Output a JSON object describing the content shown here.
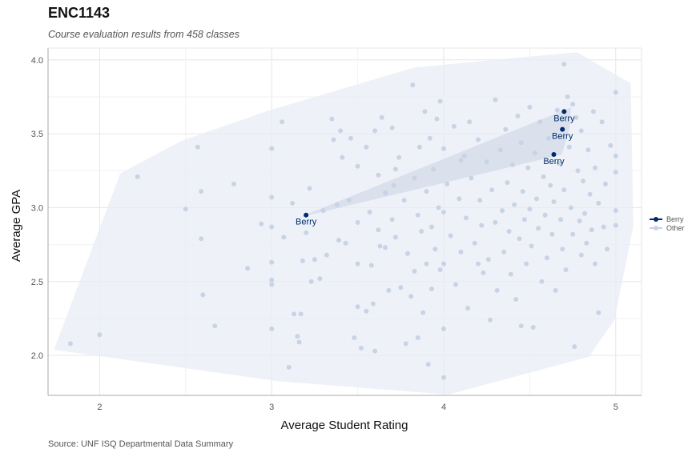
{
  "header": {
    "title": "ENC1143",
    "subtitle": "Course evaluation results from 458 classes",
    "caption": "Source: UNF ISQ Departmental Data Summary"
  },
  "colors": {
    "highlight": "#002c6e",
    "other": "#c8d3e6",
    "hull": "#e8edf5",
    "grid": "#e6e6e6"
  },
  "chart_data": {
    "type": "scatter",
    "xlabel": "Average Student Rating",
    "ylabel": "Average GPA",
    "xlim": [
      1.7,
      5.15
    ],
    "ylim": [
      1.73,
      4.08
    ],
    "x_ticks": [
      2,
      3,
      4,
      5
    ],
    "x_tick_labels": [
      "2",
      "3",
      "4",
      "5"
    ],
    "y_ticks": [
      2.0,
      2.5,
      3.0,
      3.5,
      4.0
    ],
    "y_tick_labels": [
      "2.0",
      "2.5",
      "3.0",
      "3.5",
      "4.0"
    ],
    "grid": true,
    "legend": {
      "placement": "right",
      "entries": [
        {
          "label": "Berry",
          "key": "highlight"
        },
        {
          "label": "Other",
          "key": "other"
        }
      ]
    },
    "series": [
      {
        "name": "Berry",
        "points": [
          {
            "x": 3.2,
            "y": 2.95,
            "label": "Berry"
          },
          {
            "x": 4.64,
            "y": 3.36,
            "label": "Berry"
          },
          {
            "x": 4.69,
            "y": 3.53,
            "label": "Berry"
          },
          {
            "x": 4.7,
            "y": 3.65,
            "label": "Berry"
          }
        ]
      },
      {
        "name": "Other",
        "points": [
          [
            1.83,
            2.08
          ],
          [
            2.0,
            2.14
          ],
          [
            2.22,
            3.21
          ],
          [
            2.5,
            2.99
          ],
          [
            2.57,
            3.41
          ],
          [
            2.59,
            3.11
          ],
          [
            2.59,
            2.79
          ],
          [
            2.6,
            2.41
          ],
          [
            2.67,
            2.2
          ],
          [
            2.78,
            3.16
          ],
          [
            2.86,
            2.59
          ],
          [
            2.94,
            2.89
          ],
          [
            3.0,
            3.4
          ],
          [
            3.0,
            3.07
          ],
          [
            3.0,
            2.87
          ],
          [
            3.0,
            2.63
          ],
          [
            3.0,
            2.51
          ],
          [
            3.0,
            2.48
          ],
          [
            3.0,
            2.18
          ],
          [
            3.06,
            3.58
          ],
          [
            3.07,
            2.8
          ],
          [
            3.12,
            3.03
          ],
          [
            3.1,
            1.92
          ],
          [
            3.13,
            2.28
          ],
          [
            3.15,
            2.13
          ],
          [
            3.16,
            2.09
          ],
          [
            3.17,
            2.28
          ],
          [
            3.18,
            2.64
          ],
          [
            3.2,
            2.83
          ],
          [
            3.22,
            3.13
          ],
          [
            3.23,
            2.5
          ],
          [
            3.25,
            2.65
          ],
          [
            3.28,
            2.52
          ],
          [
            3.3,
            2.98
          ],
          [
            3.32,
            2.68
          ],
          [
            3.35,
            3.6
          ],
          [
            3.36,
            3.46
          ],
          [
            3.38,
            3.02
          ],
          [
            3.39,
            2.78
          ],
          [
            3.41,
            3.34
          ],
          [
            3.43,
            2.76
          ],
          [
            3.45,
            3.05
          ],
          [
            3.46,
            3.47
          ],
          [
            3.5,
            3.28
          ],
          [
            3.5,
            2.9
          ],
          [
            3.5,
            2.62
          ],
          [
            3.5,
            2.33
          ],
          [
            3.52,
            2.05
          ],
          [
            3.55,
            3.41
          ],
          [
            3.57,
            2.97
          ],
          [
            3.58,
            2.61
          ],
          [
            3.59,
            2.35
          ],
          [
            3.6,
            2.03
          ],
          [
            3.6,
            3.52
          ],
          [
            3.62,
            3.22
          ],
          [
            3.62,
            2.85
          ],
          [
            3.64,
            3.61
          ],
          [
            3.66,
            3.1
          ],
          [
            3.66,
            2.73
          ],
          [
            3.68,
            2.44
          ],
          [
            3.7,
            3.54
          ],
          [
            3.7,
            2.92
          ],
          [
            3.71,
            3.15
          ],
          [
            3.72,
            2.8
          ],
          [
            3.74,
            3.34
          ],
          [
            3.75,
            2.46
          ],
          [
            3.77,
            3.05
          ],
          [
            3.78,
            2.08
          ],
          [
            3.79,
            2.69
          ],
          [
            3.81,
            2.4
          ],
          [
            3.82,
            3.83
          ],
          [
            3.83,
            3.2
          ],
          [
            3.83,
            2.57
          ],
          [
            3.85,
            2.95
          ],
          [
            3.86,
            3.41
          ],
          [
            3.87,
            2.84
          ],
          [
            3.88,
            2.29
          ],
          [
            3.89,
            3.65
          ],
          [
            3.9,
            3.11
          ],
          [
            3.9,
            2.62
          ],
          [
            3.91,
            1.94
          ],
          [
            3.92,
            3.47
          ],
          [
            3.93,
            2.87
          ],
          [
            3.93,
            2.45
          ],
          [
            3.94,
            3.26
          ],
          [
            3.95,
            2.72
          ],
          [
            3.96,
            3.6
          ],
          [
            3.97,
            3.0
          ],
          [
            3.98,
            2.58
          ],
          [
            4.0,
            3.4
          ],
          [
            4.0,
            2.97
          ],
          [
            4.0,
            2.62
          ],
          [
            4.0,
            2.18
          ],
          [
            4.0,
            1.85
          ],
          [
            4.02,
            3.16
          ],
          [
            4.04,
            2.81
          ],
          [
            4.06,
            3.55
          ],
          [
            4.07,
            2.48
          ],
          [
            4.09,
            3.06
          ],
          [
            4.1,
            2.7
          ],
          [
            4.12,
            3.35
          ],
          [
            4.13,
            2.93
          ],
          [
            4.14,
            2.32
          ],
          [
            4.15,
            3.58
          ],
          [
            4.16,
            3.2
          ],
          [
            4.18,
            2.76
          ],
          [
            4.2,
            3.46
          ],
          [
            4.21,
            3.05
          ],
          [
            4.22,
            2.88
          ],
          [
            4.23,
            2.56
          ],
          [
            4.25,
            3.31
          ],
          [
            4.26,
            2.65
          ],
          [
            4.27,
            2.24
          ],
          [
            4.28,
            3.12
          ],
          [
            4.3,
            2.9
          ],
          [
            4.3,
            3.73
          ],
          [
            4.31,
            2.44
          ],
          [
            4.33,
            3.39
          ],
          [
            4.34,
            2.98
          ],
          [
            4.35,
            2.7
          ],
          [
            4.36,
            3.53
          ],
          [
            4.37,
            3.17
          ],
          [
            4.38,
            2.84
          ],
          [
            4.39,
            2.55
          ],
          [
            4.4,
            3.29
          ],
          [
            4.41,
            3.02
          ],
          [
            4.42,
            2.38
          ],
          [
            4.43,
            3.62
          ],
          [
            4.44,
            2.79
          ],
          [
            4.45,
            3.44
          ],
          [
            4.46,
            3.11
          ],
          [
            4.47,
            2.92
          ],
          [
            4.48,
            2.62
          ],
          [
            4.49,
            3.27
          ],
          [
            4.5,
            2.99
          ],
          [
            4.5,
            3.68
          ],
          [
            4.51,
            2.74
          ],
          [
            4.52,
            2.19
          ],
          [
            4.53,
            3.37
          ],
          [
            4.54,
            3.06
          ],
          [
            4.55,
            2.86
          ],
          [
            4.56,
            3.58
          ],
          [
            4.57,
            2.5
          ],
          [
            4.58,
            3.21
          ],
          [
            4.59,
            2.95
          ],
          [
            4.6,
            2.66
          ],
          [
            4.61,
            3.47
          ],
          [
            4.62,
            3.15
          ],
          [
            4.63,
            2.82
          ],
          [
            4.64,
            3.04
          ],
          [
            4.65,
            2.44
          ],
          [
            4.66,
            3.66
          ],
          [
            4.67,
            3.3
          ],
          [
            4.68,
            2.92
          ],
          [
            4.69,
            2.72
          ],
          [
            4.7,
            3.97
          ],
          [
            4.7,
            3.12
          ],
          [
            4.71,
            2.58
          ],
          [
            4.72,
            3.75
          ],
          [
            4.73,
            3.41
          ],
          [
            4.74,
            3.0
          ],
          [
            4.75,
            2.82
          ],
          [
            4.75,
            3.7
          ],
          [
            4.76,
            2.06
          ],
          [
            4.77,
            3.61
          ],
          [
            4.78,
            3.25
          ],
          [
            4.79,
            2.91
          ],
          [
            4.8,
            2.68
          ],
          [
            4.8,
            3.52
          ],
          [
            4.81,
            3.18
          ],
          [
            4.82,
            2.96
          ],
          [
            4.83,
            2.76
          ],
          [
            4.84,
            3.39
          ],
          [
            4.85,
            3.09
          ],
          [
            4.86,
            2.85
          ],
          [
            4.87,
            3.65
          ],
          [
            4.88,
            2.62
          ],
          [
            4.88,
            3.27
          ],
          [
            4.9,
            3.03
          ],
          [
            4.9,
            2.29
          ],
          [
            4.92,
            3.58
          ],
          [
            4.93,
            2.87
          ],
          [
            4.94,
            3.16
          ],
          [
            4.95,
            2.72
          ],
          [
            4.97,
            3.42
          ],
          [
            5.0,
            3.78
          ],
          [
            5.0,
            3.35
          ],
          [
            5.0,
            2.98
          ],
          [
            5.0,
            2.88
          ],
          [
            5.0,
            3.24
          ],
          [
            4.45,
            2.2
          ],
          [
            4.2,
            2.62
          ],
          [
            4.1,
            3.32
          ],
          [
            3.98,
            3.72
          ],
          [
            3.85,
            2.12
          ],
          [
            3.72,
            3.26
          ],
          [
            3.63,
            2.74
          ],
          [
            3.55,
            2.3
          ],
          [
            3.48,
            2.12
          ],
          [
            3.4,
            3.52
          ]
        ]
      }
    ],
    "hulls": [
      {
        "group": "Other",
        "shape": "outer"
      },
      {
        "group": "Berry",
        "shape": "inner"
      }
    ]
  }
}
